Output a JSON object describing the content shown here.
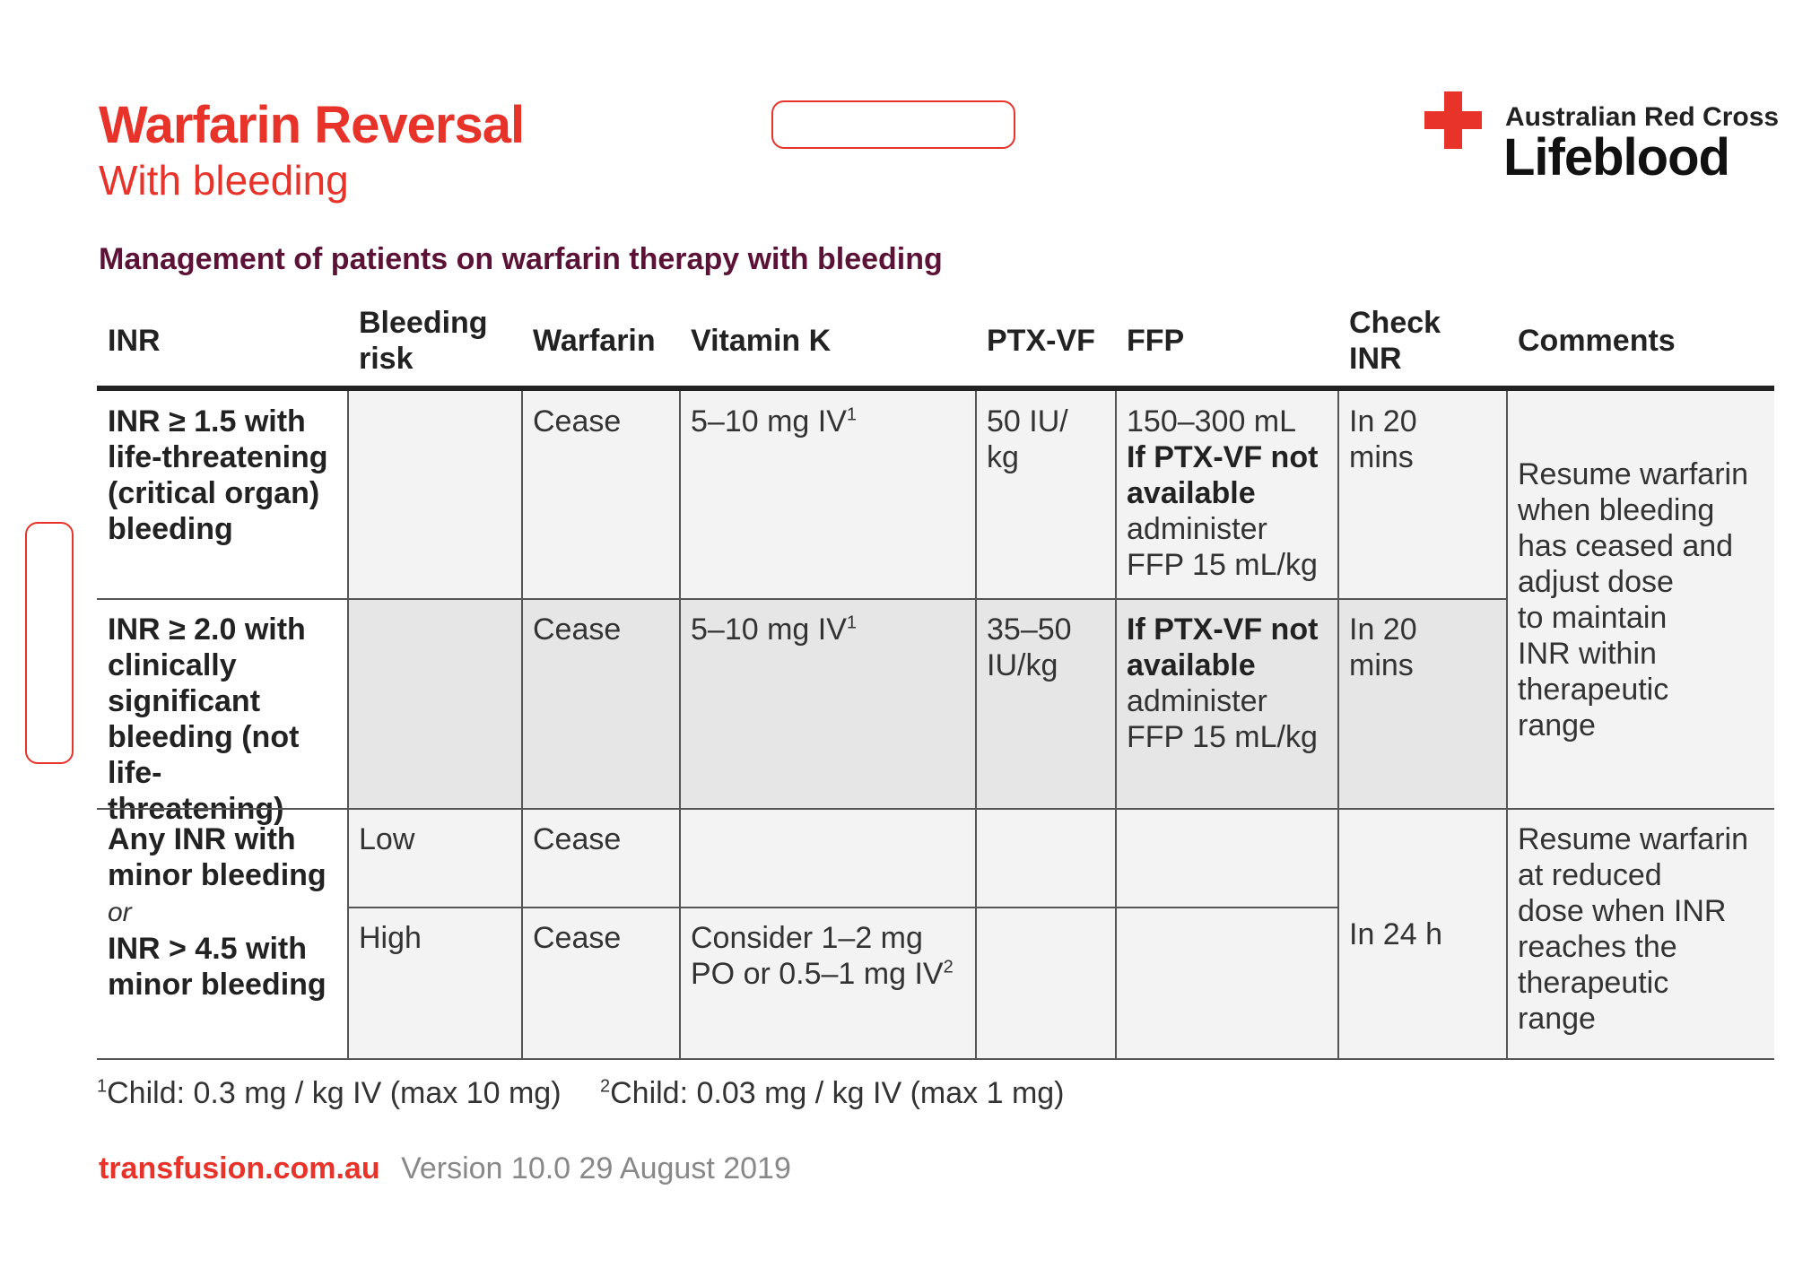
{
  "header": {
    "title": "Warfarin Reversal",
    "subtitle": "With bleeding"
  },
  "logo": {
    "line1": "Australian Red Cross",
    "line2": "Lifeblood",
    "icon": "red-cross-icon"
  },
  "section_heading": "Management of patients on warfarin therapy with bleeding",
  "table": {
    "headers": {
      "inr": "INR",
      "bleeding_risk_1": "Bleeding",
      "bleeding_risk_2": "risk",
      "warfarin": "Warfarin",
      "vitamin_k": "Vitamin K",
      "ptx_vf": "PTX-VF",
      "ffp": "FFP",
      "check_inr_1": "Check",
      "check_inr_2": "INR",
      "comments": "Comments"
    },
    "row1": {
      "inr_lines": [
        "INR ≥ 1.5 with",
        "life-threatening",
        "(critical organ)",
        "bleeding"
      ],
      "bleeding_risk": "",
      "warfarin": "Cease",
      "vitamin_k": "5–10 mg IV",
      "vitamin_k_note": "1",
      "ptx_vf_lines": [
        "50 IU/",
        "kg"
      ],
      "ffp_line1": "150–300 mL",
      "ffp_bold_lines": [
        "If PTX-VF not",
        "available"
      ],
      "ffp_tail_lines": [
        "administer",
        "FFP 15 mL/kg"
      ],
      "check_inr_lines": [
        "In 20",
        "mins"
      ]
    },
    "row2": {
      "inr_lines": [
        "INR ≥ 2.0 with",
        "clinically",
        "significant",
        "bleeding (not",
        "life-threatening)"
      ],
      "bleeding_risk": "",
      "warfarin": "Cease",
      "vitamin_k": "5–10 mg IV",
      "vitamin_k_note": "1",
      "ptx_vf_lines": [
        "35–50",
        "IU/kg"
      ],
      "ffp_bold_lines": [
        "If PTX-VF not",
        "available"
      ],
      "ffp_tail_lines": [
        "administer",
        "FFP 15 mL/kg"
      ],
      "check_inr_lines": [
        "In 20",
        "mins"
      ]
    },
    "comments_top_lines": [
      "Resume warfarin",
      "when bleeding",
      "has ceased and",
      "adjust dose",
      "to maintain",
      "INR within",
      "therapeutic",
      "range"
    ],
    "row3": {
      "inr_lines_a": [
        "Any INR with",
        "minor bleeding"
      ],
      "or_text": "or",
      "inr_lines_b": [
        "INR > 4.5 with",
        "minor bleeding"
      ],
      "low": {
        "bleeding_risk": "Low",
        "warfarin": "Cease"
      },
      "high": {
        "bleeding_risk": "High",
        "warfarin": "Cease",
        "vitamin_k_line1": "Consider 1–2 mg",
        "vitamin_k_line2": "PO or 0.5–1 mg IV",
        "vitamin_k_note": "2"
      },
      "check_inr": "In 24 h",
      "comments_lines": [
        "Resume warfarin",
        "at reduced",
        "dose when INR",
        "reaches the",
        "therapeutic",
        "range"
      ]
    }
  },
  "footnotes": {
    "fn1_mark": "1",
    "fn1_text": "Child: 0.3 mg / kg IV (max 10 mg)",
    "fn2_mark": "2",
    "fn2_text": "Child: 0.03 mg / kg IV (max 1 mg)"
  },
  "footer": {
    "site": "transfusion.com.au",
    "version": "Version 10.0 29 August 2019"
  },
  "colors": {
    "brand_red": "#e8332a",
    "heading_maroon": "#5c1236",
    "row_gray": "#e6e6e6"
  }
}
